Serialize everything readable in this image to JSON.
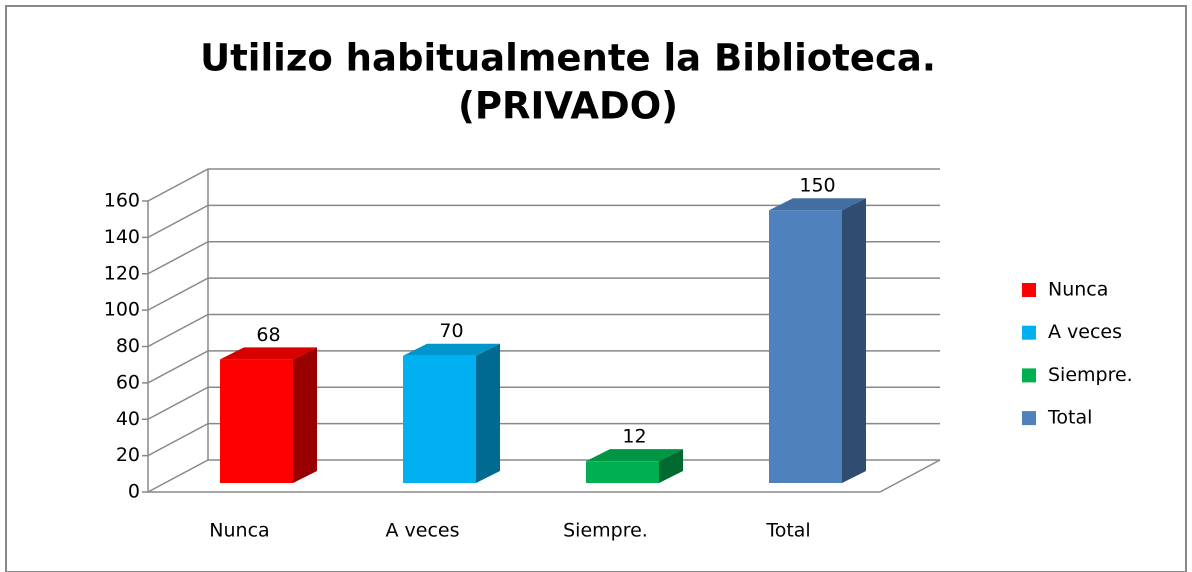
{
  "chart_data": {
    "type": "bar3d",
    "title": [
      "Utilizo habitualmente la Biblioteca.",
      "(PRIVADO)"
    ],
    "categories": [
      "Nunca",
      "A veces",
      "Siempre.",
      "Total"
    ],
    "values": [
      68,
      70,
      12,
      150
    ],
    "colors": [
      "#ff0000",
      "#00b0f0",
      "#00b050",
      "#4f81bd"
    ],
    "ylim": [
      0,
      160
    ],
    "yticks": [
      0,
      20,
      40,
      60,
      80,
      100,
      120,
      140,
      160
    ],
    "grid": true,
    "legend": "right"
  }
}
